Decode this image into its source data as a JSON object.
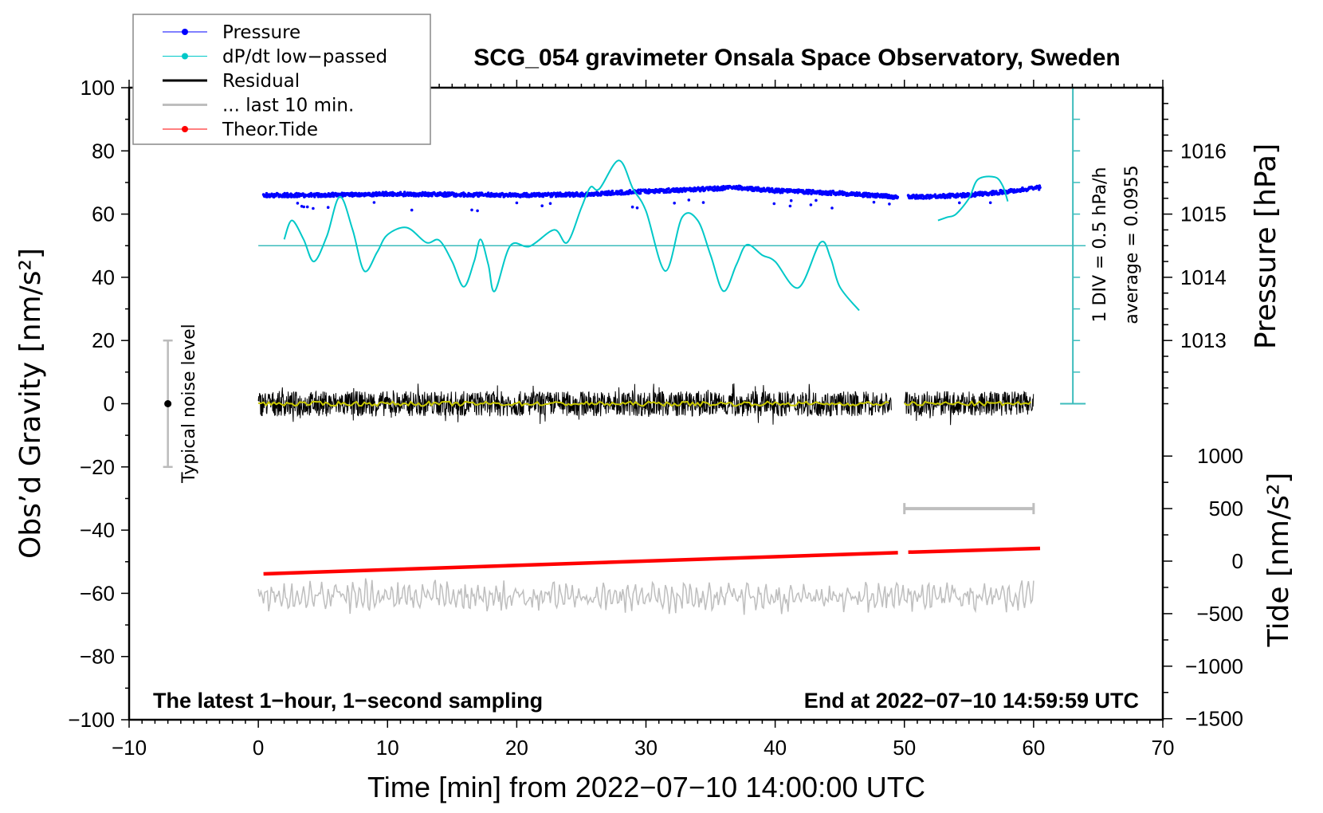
{
  "chart_data": {
    "type": "line",
    "title": "SCG_054 gravimeter Onsala Space Observatory, Sweden",
    "xlabel": "Time [min] from 2022−07−10 14:00:00 UTC",
    "ylabel": "Obs’d Gravity [nm/s²]",
    "ylabel_right_top": "Pressure [hPa]",
    "ylabel_right_bottom": "Tide [nm/s²]",
    "xlim": [
      -10,
      70
    ],
    "ylim": [
      -100,
      100
    ],
    "x_ticks": [
      -10,
      0,
      10,
      20,
      30,
      40,
      50,
      60,
      70
    ],
    "x_tick_labels": [
      "−10",
      "0",
      "10",
      "20",
      "30",
      "40",
      "50",
      "60",
      "70"
    ],
    "y_ticks": [
      100,
      80,
      60,
      40,
      20,
      0,
      -20,
      -40,
      -60,
      -80,
      -100
    ],
    "y_tick_labels": [
      "100",
      "80",
      "60",
      "40",
      "20",
      "0",
      "−20",
      "−40",
      "−60",
      "−80",
      "−100"
    ],
    "pressure_ticks": [
      1016,
      1015,
      1014,
      1013
    ],
    "pressure_tick_labels": [
      "1016",
      "1015",
      "1014",
      "1013"
    ],
    "tide_ticks": [
      1000,
      500,
      0,
      -500,
      -1000,
      -1500
    ],
    "tide_tick_labels": [
      "1000",
      "500",
      "0",
      "−500",
      "−1000",
      "−1500"
    ],
    "legend": {
      "placement": "top-left",
      "entries": [
        {
          "label": "Pressure",
          "color": "#0000ff",
          "marker": true
        },
        {
          "label": "dP/dt low−passed",
          "color": "#00c8c8",
          "marker": true
        },
        {
          "label": "Residual",
          "color": "#000000",
          "marker": false
        },
        {
          "label": "... last 10 min.",
          "color": "#bebebe",
          "marker": false
        },
        {
          "label": "Theor.Tide",
          "color": "#ff0000",
          "marker": true
        }
      ]
    },
    "series": [
      {
        "name": "Pressure",
        "unit": "hPa",
        "color": "#0000ff",
        "segments": [
          {
            "t": [
              0.4,
              5,
              10,
              15,
              20,
              25,
              30,
              35,
              37,
              40,
              45,
              49.5
            ],
            "values": [
              1015.3,
              1015.3,
              1015.32,
              1015.31,
              1015.3,
              1015.31,
              1015.36,
              1015.4,
              1015.42,
              1015.37,
              1015.33,
              1015.27
            ]
          },
          {
            "t": [
              50.3,
              52,
              55,
              58,
              60.5
            ],
            "values": [
              1015.27,
              1015.28,
              1015.3,
              1015.36,
              1015.42
            ]
          }
        ]
      },
      {
        "name": "dP/dt low−passed",
        "unit": "gravity-axis scaled",
        "color": "#00c8c8",
        "segments": [
          {
            "t": [
              2,
              2.6,
              3.5,
              4.3,
              5.3,
              6.3,
              7.3,
              8.2,
              9.2,
              10,
              11.5,
              13,
              14,
              15,
              15.9,
              16.7,
              17.2,
              17.8,
              18.3,
              19.5,
              21,
              22.9,
              23.9,
              25,
              25.7,
              26.4,
              27.9,
              29,
              30,
              31.5,
              32.8,
              34,
              35,
              36,
              37,
              37.8,
              39,
              40,
              41.8,
              43.5,
              44.3,
              45,
              46.5
            ],
            "values": [
              52,
              58,
              52,
              45,
              53,
              65.5,
              55,
              42,
              48,
              53.5,
              55.7,
              51,
              51.7,
              45,
              37,
              45,
              52,
              44,
              35.6,
              50,
              49.8,
              55,
              51,
              62,
              68.5,
              68,
              77,
              68,
              61,
              42,
              59,
              58,
              47,
              35.6,
              44,
              50.3,
              47,
              45,
              36.7,
              51,
              46,
              37,
              29.5
            ]
          },
          {
            "t": [
              52.6,
              53.3,
              54,
              55,
              55.7,
              57,
              57.6,
              58
            ],
            "values": [
              58,
              59,
              60,
              65,
              71,
              71.7,
              69,
              64
            ]
          }
        ]
      },
      {
        "name": "Residual",
        "unit": "nm/s²",
        "color": "#000000",
        "filtered_color": "#c8c800",
        "segments": [
          [
            0,
            49
          ],
          [
            50,
            60
          ]
        ],
        "center": 0,
        "typical_amplitude": 4,
        "max_amplitude": 7.5
      },
      {
        "name": "... last 10 min.",
        "unit": "nm/s²",
        "color": "#bebebe",
        "span_minutes": [
          50,
          60
        ],
        "center": -61,
        "typical_amplitude": 4
      },
      {
        "name": "Theor.Tide",
        "unit": "nm/s²",
        "color": "#ff0000",
        "segments": [
          {
            "t": [
              0.4,
              49.5
            ],
            "values": [
              -121,
              81
            ]
          },
          {
            "t": [
              50.3,
              60.5
            ],
            "values": [
              85,
              121
            ]
          }
        ]
      }
    ],
    "last_10_min_bar": {
      "t": [
        50,
        60
      ],
      "tide_level": 500
    },
    "noise_level": {
      "t": -7,
      "center": 0,
      "range": [
        -20,
        20
      ],
      "label": "Typical noise level"
    },
    "dpdt_scale": {
      "label": "1 DIV = 0.5 hPa/h",
      "average_label": "average = 0.0955",
      "baseline": 50,
      "range": [
        0,
        100
      ],
      "div": 10
    },
    "annotations": {
      "left": "The latest 1−hour, 1−second sampling",
      "right": "End at 2022−07−10 14:59:59 UTC"
    },
    "grid": false
  }
}
